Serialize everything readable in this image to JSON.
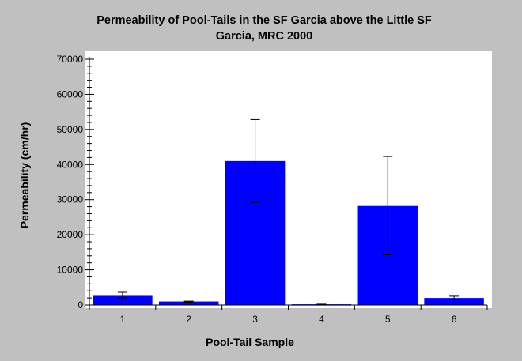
{
  "chart_data": {
    "type": "bar",
    "title_lines": [
      "Permeability of Pool-Tails in the SF Garcia above the Little SF",
      "Garcia, MRC 2000"
    ],
    "xlabel": "Pool-Tail Sample",
    "ylabel": "Permeability (cm/hr)",
    "categories": [
      "1",
      "2",
      "3",
      "4",
      "5",
      "6"
    ],
    "values": [
      2600,
      1000,
      41000,
      200,
      28200,
      2000
    ],
    "error_low": [
      2000,
      800,
      29200,
      150,
      14300,
      1500
    ],
    "error_high": [
      3600,
      1100,
      52800,
      250,
      42300,
      2500
    ],
    "reference_line": 12500,
    "ylim": [
      0,
      70000
    ],
    "yticks": [
      0,
      10000,
      20000,
      30000,
      40000,
      50000,
      60000,
      70000
    ],
    "grid": false,
    "colors": {
      "bar": "#0000ff",
      "reference_line": "#e000e0",
      "plot_background": "#ffffff",
      "figure_background": "#c0c0c0"
    }
  }
}
